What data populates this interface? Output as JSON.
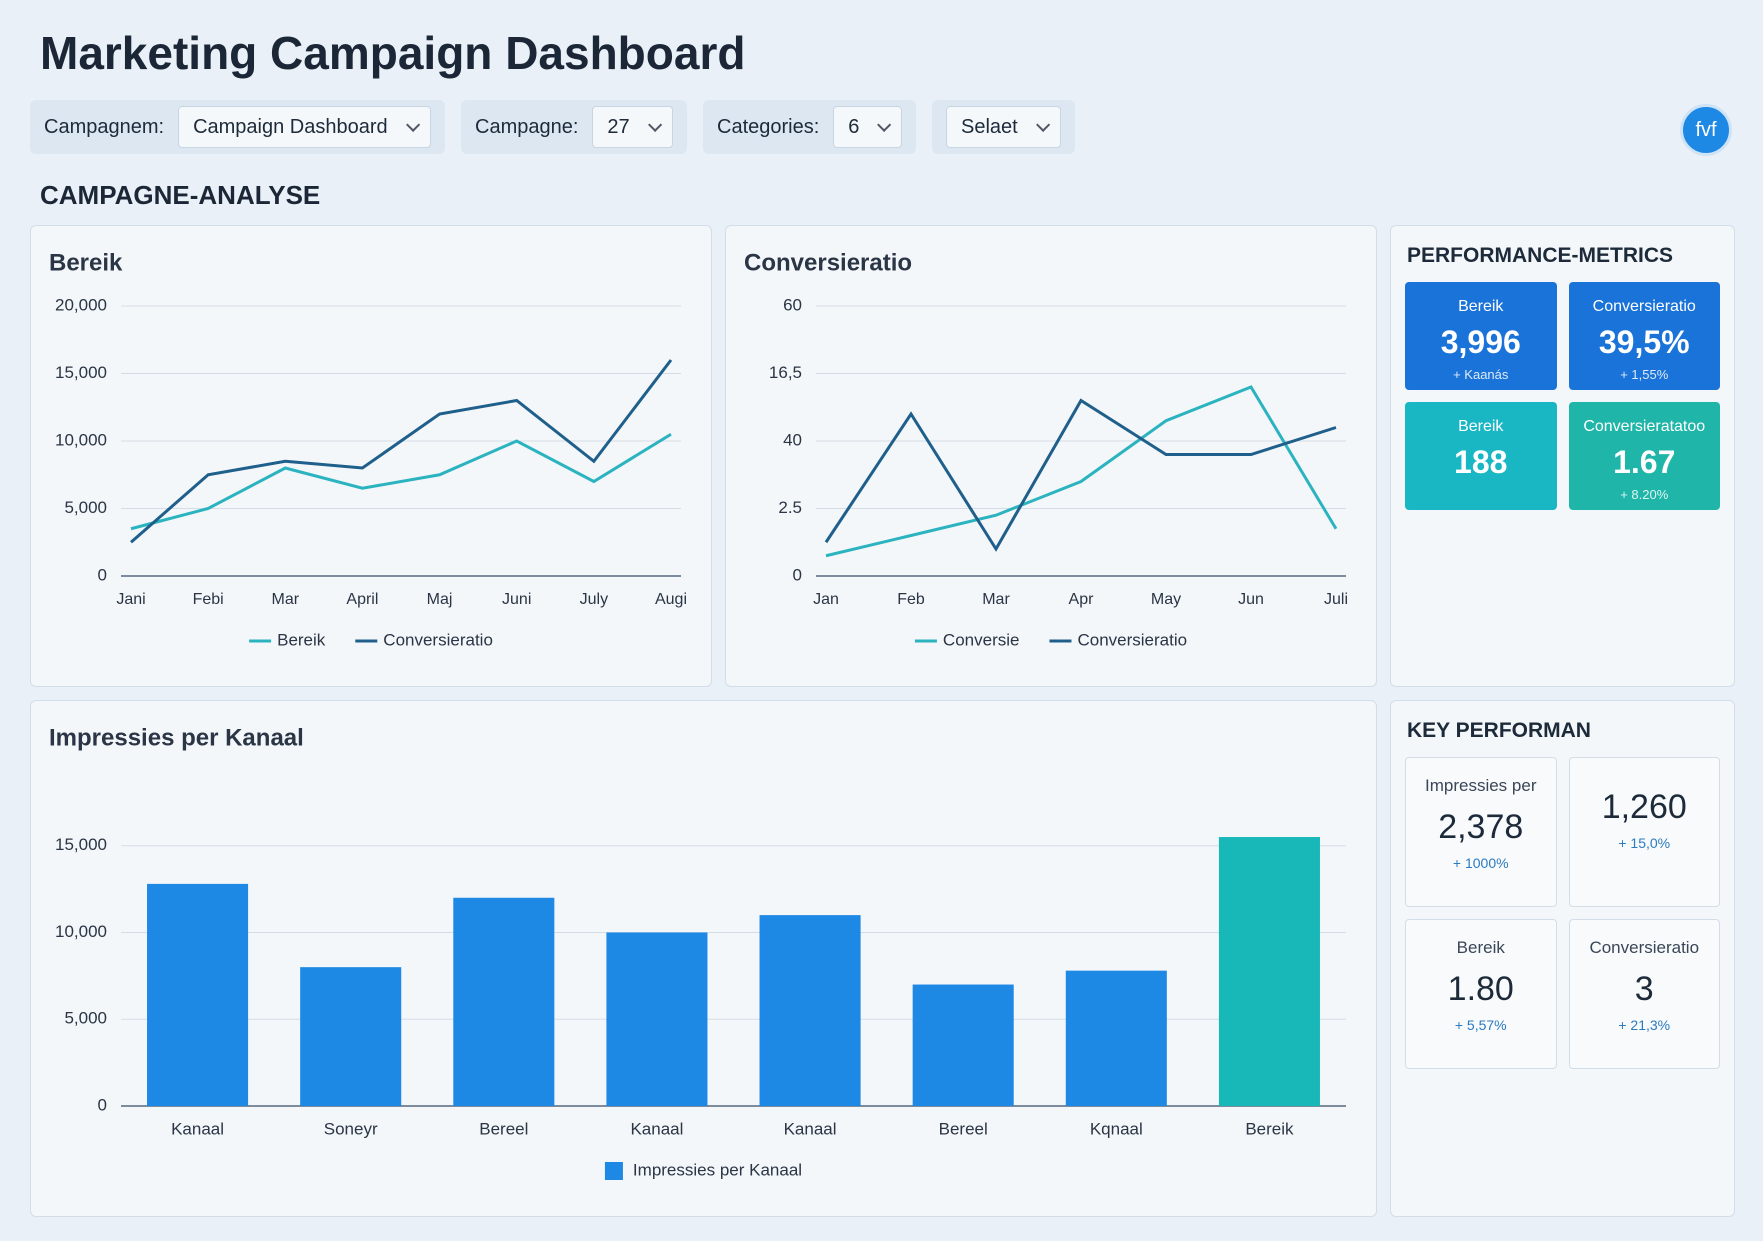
{
  "header": {
    "title": "Marketing Campaign Dashboard",
    "avatar": "fvf"
  },
  "filters": [
    {
      "label": "Campagnem:",
      "value": "Campaign Dashboard"
    },
    {
      "label": "Campagne:",
      "value": "27"
    },
    {
      "label": "Categories:",
      "value": "6"
    },
    {
      "value": "Selaet"
    }
  ],
  "section_title": "CAMPAGNE-ANALYSE",
  "chart_data": [
    {
      "type": "line",
      "title": "Bereik",
      "categories": [
        "Jani",
        "Febi",
        "Mar",
        "April",
        "Maj",
        "Juni",
        "July",
        "Augi"
      ],
      "ylim": [
        0,
        20000
      ],
      "yticks": [
        0,
        {
          "value": 5000,
          "label": "5,000"
        },
        {
          "value": 10000,
          "label": "10,000"
        },
        {
          "value": 15000,
          "label": "15,000"
        },
        {
          "value": 20000,
          "label": "20,000"
        }
      ],
      "grid": true,
      "series": [
        {
          "name": "Bereik",
          "color": "#2bb3c0",
          "values": [
            3500,
            5000,
            8000,
            6500,
            7500,
            10000,
            7000,
            10500
          ]
        },
        {
          "name": "Conversieratio",
          "color": "#1f5f8b",
          "values": [
            2500,
            7500,
            8500,
            8000,
            12000,
            13000,
            8500,
            16000
          ]
        }
      ]
    },
    {
      "type": "line",
      "title": "Conversieratio",
      "categories": [
        "Jan",
        "Feb",
        "Mar",
        "Apr",
        "May",
        "Jun",
        "Juli"
      ],
      "ylevels": [
        "0",
        "2.5",
        "40",
        "16,5",
        "60"
      ],
      "grid": true,
      "series": [
        {
          "name": "Conversie",
          "color": "#2bb3c0",
          "values": [
            0.3,
            0.6,
            0.9,
            1.4,
            2.3,
            2.8,
            0.7
          ]
        },
        {
          "name": "Conversieratio",
          "color": "#1f5f8b",
          "values": [
            0.5,
            2.4,
            0.4,
            2.6,
            1.8,
            1.8,
            2.2
          ]
        }
      ]
    },
    {
      "type": "bar",
      "title": "Impressies per Kanaal",
      "categories": [
        "Kanaal",
        "Soneyr",
        "Bereel",
        "Kanaal",
        "Kanaal",
        "Bereel",
        "Kqnaal",
        "Bereik"
      ],
      "ylim": [
        0,
        17000
      ],
      "yticks": [
        0,
        {
          "value": 5000,
          "label": "5,000"
        },
        {
          "value": 10000,
          "label": "10,000"
        },
        {
          "value": 15000,
          "label": "15,000"
        }
      ],
      "grid": true,
      "series": [
        {
          "name": "Impressies per Kanaal",
          "color": "#1e88e5",
          "values": [
            12800,
            8000,
            12000,
            10000,
            11000,
            7000,
            7800,
            15500
          ]
        }
      ],
      "colors": [
        "#1e88e5",
        "#1e88e5",
        "#1e88e5",
        "#1e88e5",
        "#1e88e5",
        "#1e88e5",
        "#1e88e5",
        "#19b8b8"
      ]
    }
  ],
  "performance": {
    "title": "PERFORMANCE-METRICS",
    "cards": [
      {
        "label": "Bereik",
        "value": "3,996",
        "sub": "+ Kaanás",
        "color": "#1a73d9"
      },
      {
        "label": "Conversieratio",
        "value": "39,5%",
        "sub": "+ 1,55%",
        "color": "#1a73d9"
      },
      {
        "label": "Bereik",
        "value": "188",
        "color": "#19b6c4"
      },
      {
        "label": "Conversieratatoo",
        "value": "1.67",
        "sub": "+ 8.20%",
        "color": "#1fb5a8"
      }
    ]
  },
  "key_performance": {
    "title": "KEY PERFORMAN",
    "cards": [
      {
        "label": "Impressies per",
        "value": "2,378",
        "sub": "+ 1000%"
      },
      {
        "value": "1,260",
        "sub": "+ 15,0%"
      },
      {
        "label": "Bereik",
        "value": "1.80",
        "sub": "+ 5,57%"
      },
      {
        "label": "Conversieratio",
        "value": "3",
        "sub": "+ 21,3%"
      }
    ]
  }
}
